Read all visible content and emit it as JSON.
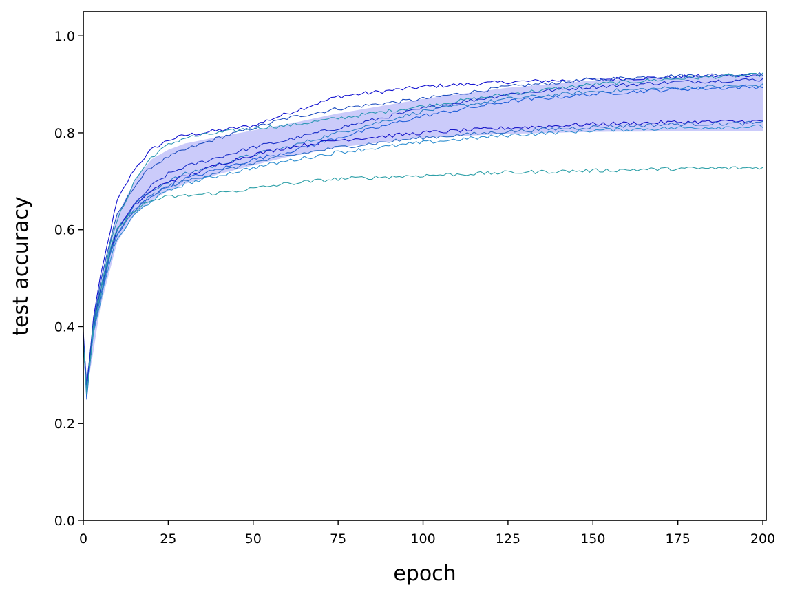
{
  "chart_data": {
    "type": "line",
    "title": "",
    "xlabel": "epoch",
    "ylabel": "test accuracy",
    "xlim": [
      0,
      201
    ],
    "ylim": [
      0.0,
      1.05
    ],
    "xticks": [
      0,
      25,
      50,
      75,
      100,
      125,
      150,
      175,
      200
    ],
    "yticks": [
      0.0,
      0.2,
      0.4,
      0.6,
      0.8,
      1.0
    ],
    "xtick_labels": [
      "0",
      "25",
      "50",
      "75",
      "100",
      "125",
      "150",
      "175",
      "200"
    ],
    "ytick_labels": [
      "0.0",
      "0.2",
      "0.4",
      "0.6",
      "0.8",
      "1.0"
    ],
    "grid": false,
    "legend": "none",
    "band": {
      "color": "#cbcbfa",
      "x": [
        0,
        1,
        3,
        5,
        10,
        15,
        20,
        25,
        30,
        40,
        50,
        60,
        75,
        100,
        125,
        150,
        175,
        200
      ],
      "lower": [
        0.36,
        0.27,
        0.35,
        0.44,
        0.575,
        0.63,
        0.66,
        0.68,
        0.695,
        0.715,
        0.733,
        0.75,
        0.77,
        0.79,
        0.798,
        0.802,
        0.803,
        0.803
      ],
      "upper": [
        0.38,
        0.3,
        0.38,
        0.5,
        0.63,
        0.7,
        0.745,
        0.765,
        0.778,
        0.792,
        0.805,
        0.818,
        0.84,
        0.87,
        0.893,
        0.908,
        0.915,
        0.918
      ]
    },
    "series": [
      {
        "color": "#1010d0",
        "x": [
          0,
          1,
          3,
          5,
          8,
          10,
          15,
          20,
          25,
          30,
          40,
          50,
          60,
          75,
          100,
          125,
          150,
          175,
          200
        ],
        "y": [
          0.39,
          0.27,
          0.42,
          0.5,
          0.6,
          0.66,
          0.725,
          0.765,
          0.785,
          0.795,
          0.805,
          0.815,
          0.84,
          0.875,
          0.895,
          0.905,
          0.91,
          0.915,
          0.92
        ]
      },
      {
        "color": "#1f4fc0",
        "x": [
          0,
          1,
          3,
          5,
          8,
          10,
          15,
          20,
          25,
          30,
          40,
          50,
          60,
          75,
          100,
          125,
          150,
          175,
          200
        ],
        "y": [
          0.38,
          0.28,
          0.41,
          0.49,
          0.58,
          0.63,
          0.69,
          0.73,
          0.75,
          0.765,
          0.79,
          0.81,
          0.83,
          0.85,
          0.87,
          0.895,
          0.91,
          0.918,
          0.921
        ]
      },
      {
        "color": "#2a96b4",
        "x": [
          0,
          1,
          3,
          5,
          8,
          10,
          15,
          20,
          25,
          30,
          40,
          50,
          60,
          75,
          100,
          125,
          150,
          175,
          200
        ],
        "y": [
          0.38,
          0.26,
          0.4,
          0.48,
          0.57,
          0.62,
          0.7,
          0.75,
          0.775,
          0.79,
          0.8,
          0.81,
          0.815,
          0.83,
          0.855,
          0.88,
          0.9,
          0.912,
          0.92
        ]
      },
      {
        "color": "#1a2fc8",
        "x": [
          0,
          1,
          3,
          5,
          8,
          10,
          15,
          20,
          25,
          30,
          40,
          50,
          60,
          75,
          100,
          125,
          150,
          175,
          200
        ],
        "y": [
          0.38,
          0.27,
          0.4,
          0.47,
          0.56,
          0.6,
          0.65,
          0.69,
          0.715,
          0.73,
          0.75,
          0.77,
          0.785,
          0.81,
          0.85,
          0.88,
          0.895,
          0.905,
          0.91
        ]
      },
      {
        "color": "#2a7fc8",
        "x": [
          0,
          1,
          3,
          5,
          8,
          10,
          15,
          20,
          25,
          30,
          40,
          50,
          60,
          75,
          100,
          125,
          150,
          175,
          200
        ],
        "y": [
          0.37,
          0.26,
          0.4,
          0.47,
          0.56,
          0.6,
          0.65,
          0.68,
          0.7,
          0.715,
          0.735,
          0.755,
          0.77,
          0.8,
          0.845,
          0.87,
          0.885,
          0.893,
          0.898
        ]
      },
      {
        "color": "#1f5fd8",
        "x": [
          0,
          1,
          3,
          5,
          8,
          10,
          15,
          20,
          25,
          30,
          40,
          50,
          60,
          75,
          100,
          125,
          150,
          175,
          200
        ],
        "y": [
          0.37,
          0.25,
          0.4,
          0.46,
          0.55,
          0.59,
          0.64,
          0.67,
          0.69,
          0.705,
          0.725,
          0.745,
          0.76,
          0.79,
          0.835,
          0.865,
          0.88,
          0.89,
          0.895
        ]
      },
      {
        "color": "#1616c8",
        "x": [
          0,
          1,
          3,
          5,
          8,
          10,
          15,
          20,
          25,
          30,
          40,
          50,
          60,
          75,
          100,
          125,
          150,
          175,
          200
        ],
        "y": [
          0.38,
          0.27,
          0.4,
          0.47,
          0.56,
          0.6,
          0.65,
          0.68,
          0.7,
          0.71,
          0.735,
          0.755,
          0.77,
          0.785,
          0.8,
          0.81,
          0.818,
          0.822,
          0.824
        ]
      },
      {
        "color": "#2f6fc8",
        "x": [
          0,
          1,
          3,
          5,
          8,
          10,
          15,
          20,
          25,
          30,
          40,
          50,
          60,
          75,
          100,
          125,
          150,
          175,
          200
        ],
        "y": [
          0.37,
          0.26,
          0.39,
          0.46,
          0.55,
          0.59,
          0.64,
          0.67,
          0.69,
          0.7,
          0.72,
          0.738,
          0.752,
          0.77,
          0.79,
          0.803,
          0.812,
          0.818,
          0.82
        ]
      },
      {
        "color": "#2f8fd0",
        "x": [
          0,
          1,
          3,
          5,
          8,
          10,
          15,
          20,
          25,
          30,
          40,
          50,
          60,
          75,
          100,
          125,
          150,
          175,
          200
        ],
        "y": [
          0.37,
          0.26,
          0.39,
          0.45,
          0.54,
          0.58,
          0.63,
          0.66,
          0.68,
          0.695,
          0.712,
          0.728,
          0.742,
          0.76,
          0.78,
          0.795,
          0.805,
          0.81,
          0.813
        ]
      },
      {
        "color": "#2ea0a8",
        "x": [
          0,
          1,
          3,
          5,
          8,
          10,
          15,
          20,
          25,
          30,
          40,
          50,
          60,
          75,
          100,
          125,
          150,
          175,
          200
        ],
        "y": [
          0.37,
          0.26,
          0.4,
          0.47,
          0.56,
          0.6,
          0.64,
          0.66,
          0.668,
          0.67,
          0.676,
          0.685,
          0.695,
          0.705,
          0.712,
          0.718,
          0.722,
          0.726,
          0.728
        ]
      }
    ]
  }
}
